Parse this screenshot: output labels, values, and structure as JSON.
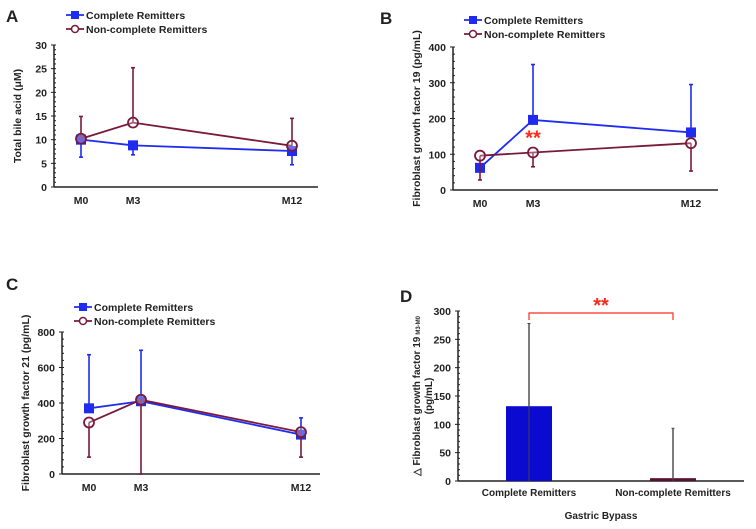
{
  "colors": {
    "complete": "#1f2cf0",
    "noncomplete": "#7a1a3a",
    "bar_complete": "#0a0ad0",
    "bar_noncomplete": "#5a1030",
    "sig": "#ff2a1a"
  },
  "chart_data": [
    {
      "panel": "A",
      "type": "line",
      "ylabel": "Total bile acid (μM)",
      "categories": [
        "M0",
        "M3",
        "M12"
      ],
      "ylim": [
        0,
        30
      ],
      "yticks": [
        "0",
        "5",
        "10",
        "15",
        "20",
        "25",
        "30"
      ],
      "legend": [
        "Complete Remitters",
        "Non-complete Remitters"
      ],
      "series": [
        {
          "name": "Complete Remitters",
          "values": [
            10,
            8.8,
            7.6
          ],
          "err_low": [
            6.3,
            6.8,
            4.7
          ],
          "err_high": null
        },
        {
          "name": "Non-complete Remitters",
          "values": [
            10.2,
            13.6,
            8.7
          ],
          "err_low": null,
          "err_high": [
            14.9,
            25.2,
            14.5
          ]
        }
      ],
      "annotations": []
    },
    {
      "panel": "B",
      "type": "line",
      "ylabel": "Fibroblast growth factor 19 (pg/mL)",
      "categories": [
        "M0",
        "M3",
        "M12"
      ],
      "ylim": [
        0,
        400
      ],
      "yticks": [
        "0",
        "100",
        "200",
        "300",
        "400"
      ],
      "legend": [
        "Complete Remitters",
        "Non-complete Remitters"
      ],
      "series": [
        {
          "name": "Complete Remitters",
          "values": [
            62,
            196,
            161
          ],
          "err_low": null,
          "err_high": [
            62,
            351,
            295
          ]
        },
        {
          "name": "Non-complete Remitters",
          "values": [
            96,
            105,
            131
          ],
          "err_low": [
            28,
            65,
            53
          ],
          "err_high": null
        }
      ],
      "annotations": [
        {
          "text": "**",
          "category": "M3",
          "y": 150
        }
      ]
    },
    {
      "panel": "C",
      "type": "line",
      "ylabel": "Fibroblast growth factor 21 (pg/mL)",
      "categories": [
        "M0",
        "M3",
        "M12"
      ],
      "ylim": [
        0,
        800
      ],
      "yticks": [
        "0",
        "200",
        "400",
        "600",
        "800"
      ],
      "legend": [
        "Complete Remitters",
        "Non-complete Remitters"
      ],
      "series": [
        {
          "name": "Complete Remitters",
          "values": [
            370,
            410,
            222
          ],
          "err_low": null,
          "err_high": [
            672,
            697,
            316
          ]
        },
        {
          "name": "Non-complete Remitters",
          "values": [
            290,
            418,
            236
          ],
          "err_low": [
            95,
            0,
            95
          ],
          "err_high": null
        }
      ],
      "annotations": []
    },
    {
      "panel": "D",
      "type": "bar",
      "ylabel": "△ Fibroblast growth factor 19",
      "ylabel_sub": "M3-M0",
      "ylabel2": "(pg/mL)",
      "xlabel": "Gastric Bypass",
      "categories": [
        "Complete Remitters",
        "Non-complete Remitters"
      ],
      "values": [
        132,
        5
      ],
      "err_high": [
        278,
        93
      ],
      "ylim": [
        0,
        300
      ],
      "yticks": [
        "0",
        "50",
        "100",
        "150",
        "200",
        "250",
        "300"
      ],
      "annotations": [
        {
          "text": "**",
          "type": "bracket"
        }
      ]
    }
  ]
}
